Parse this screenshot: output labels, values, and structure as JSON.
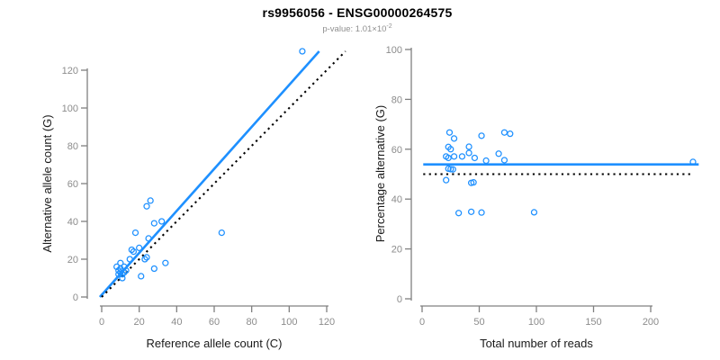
{
  "header": {
    "title": "rs9956056 - ENSG00000264575",
    "pvalue_prefix": "p-value: 1.01×10",
    "pvalue_exponent": "-2"
  },
  "colors": {
    "accent_blue": "#1E90FF",
    "identity_black": "#000000",
    "axis_line_gray": "#808080",
    "tick_label_gray": "#8c8c8c",
    "axis_title_color": "#1a1a1a",
    "subtitle_gray": "#8f8f8f",
    "background": "#ffffff"
  },
  "chart_data": [
    {
      "type": "scatter",
      "panel": "left",
      "xlabel": "Reference allele count (C)",
      "ylabel": "Alternative allele count (G)",
      "xlim": [
        0,
        131
      ],
      "ylim": [
        0,
        133
      ],
      "xticks": [
        0,
        20,
        40,
        60,
        80,
        100,
        120
      ],
      "yticks": [
        0,
        20,
        40,
        60,
        80,
        100,
        120
      ],
      "grid": false,
      "legend": "none",
      "points": [
        [
          107,
          130
        ],
        [
          26,
          51
        ],
        [
          24,
          48
        ],
        [
          32,
          40
        ],
        [
          28,
          39
        ],
        [
          64,
          34
        ],
        [
          18,
          34
        ],
        [
          25,
          31
        ],
        [
          20,
          26
        ],
        [
          16,
          25
        ],
        [
          17,
          24
        ],
        [
          24,
          21
        ],
        [
          23,
          20
        ],
        [
          15,
          20
        ],
        [
          34,
          18
        ],
        [
          28,
          15
        ],
        [
          21,
          11
        ],
        [
          10,
          18
        ],
        [
          8,
          16
        ],
        [
          10,
          15
        ],
        [
          9,
          14
        ],
        [
          10,
          13
        ],
        [
          9,
          12
        ],
        [
          13,
          14
        ],
        [
          11,
          10
        ],
        [
          12,
          16
        ],
        [
          11,
          12
        ],
        [
          12,
          13
        ]
      ],
      "lines": [
        {
          "name": "regression-line",
          "style": "solid",
          "color": "#1E90FF",
          "from": [
            -1,
            0
          ],
          "to": [
            116,
            130
          ]
        },
        {
          "name": "identity-line",
          "style": "dotted",
          "color": "#000000",
          "from": [
            0,
            0
          ],
          "to": [
            130,
            130
          ]
        }
      ]
    },
    {
      "type": "scatter",
      "panel": "right",
      "xlabel": "Total number of reads",
      "ylabel": "Percentage alternative (G)",
      "xlim": [
        0,
        250
      ],
      "ylim": [
        0,
        100
      ],
      "xticks": [
        0,
        50,
        100,
        150,
        200
      ],
      "yticks": [
        0,
        20,
        40,
        60,
        80,
        100
      ],
      "grid": false,
      "legend": "none",
      "points": [
        [
          237,
          54.9
        ],
        [
          77,
          66.2
        ],
        [
          72,
          66.7
        ],
        [
          72,
          55.6
        ],
        [
          67,
          58.2
        ],
        [
          98,
          34.7
        ],
        [
          52,
          65.4
        ],
        [
          56,
          55.4
        ],
        [
          46,
          56.5
        ],
        [
          41,
          61
        ],
        [
          41,
          58.5
        ],
        [
          45,
          46.7
        ],
        [
          43,
          46.5
        ],
        [
          35,
          57.1
        ],
        [
          52,
          34.6
        ],
        [
          43,
          34.9
        ],
        [
          32,
          34.4
        ],
        [
          28,
          64.3
        ],
        [
          24,
          66.7
        ],
        [
          25,
          60
        ],
        [
          23,
          60.9
        ],
        [
          23,
          56.5
        ],
        [
          21,
          57.1
        ],
        [
          27,
          51.9
        ],
        [
          21,
          47.6
        ],
        [
          28,
          57.1
        ],
        [
          23,
          52.2
        ],
        [
          25,
          52
        ]
      ],
      "lines": [
        {
          "name": "fit-line",
          "style": "solid",
          "color": "#1E90FF",
          "from": [
            1,
            53.9
          ],
          "to": [
            242,
            53.9
          ]
        },
        {
          "name": "null-line",
          "style": "dotted",
          "color": "#000000",
          "from": [
            1,
            50
          ],
          "to": [
            235,
            50
          ]
        }
      ]
    }
  ]
}
